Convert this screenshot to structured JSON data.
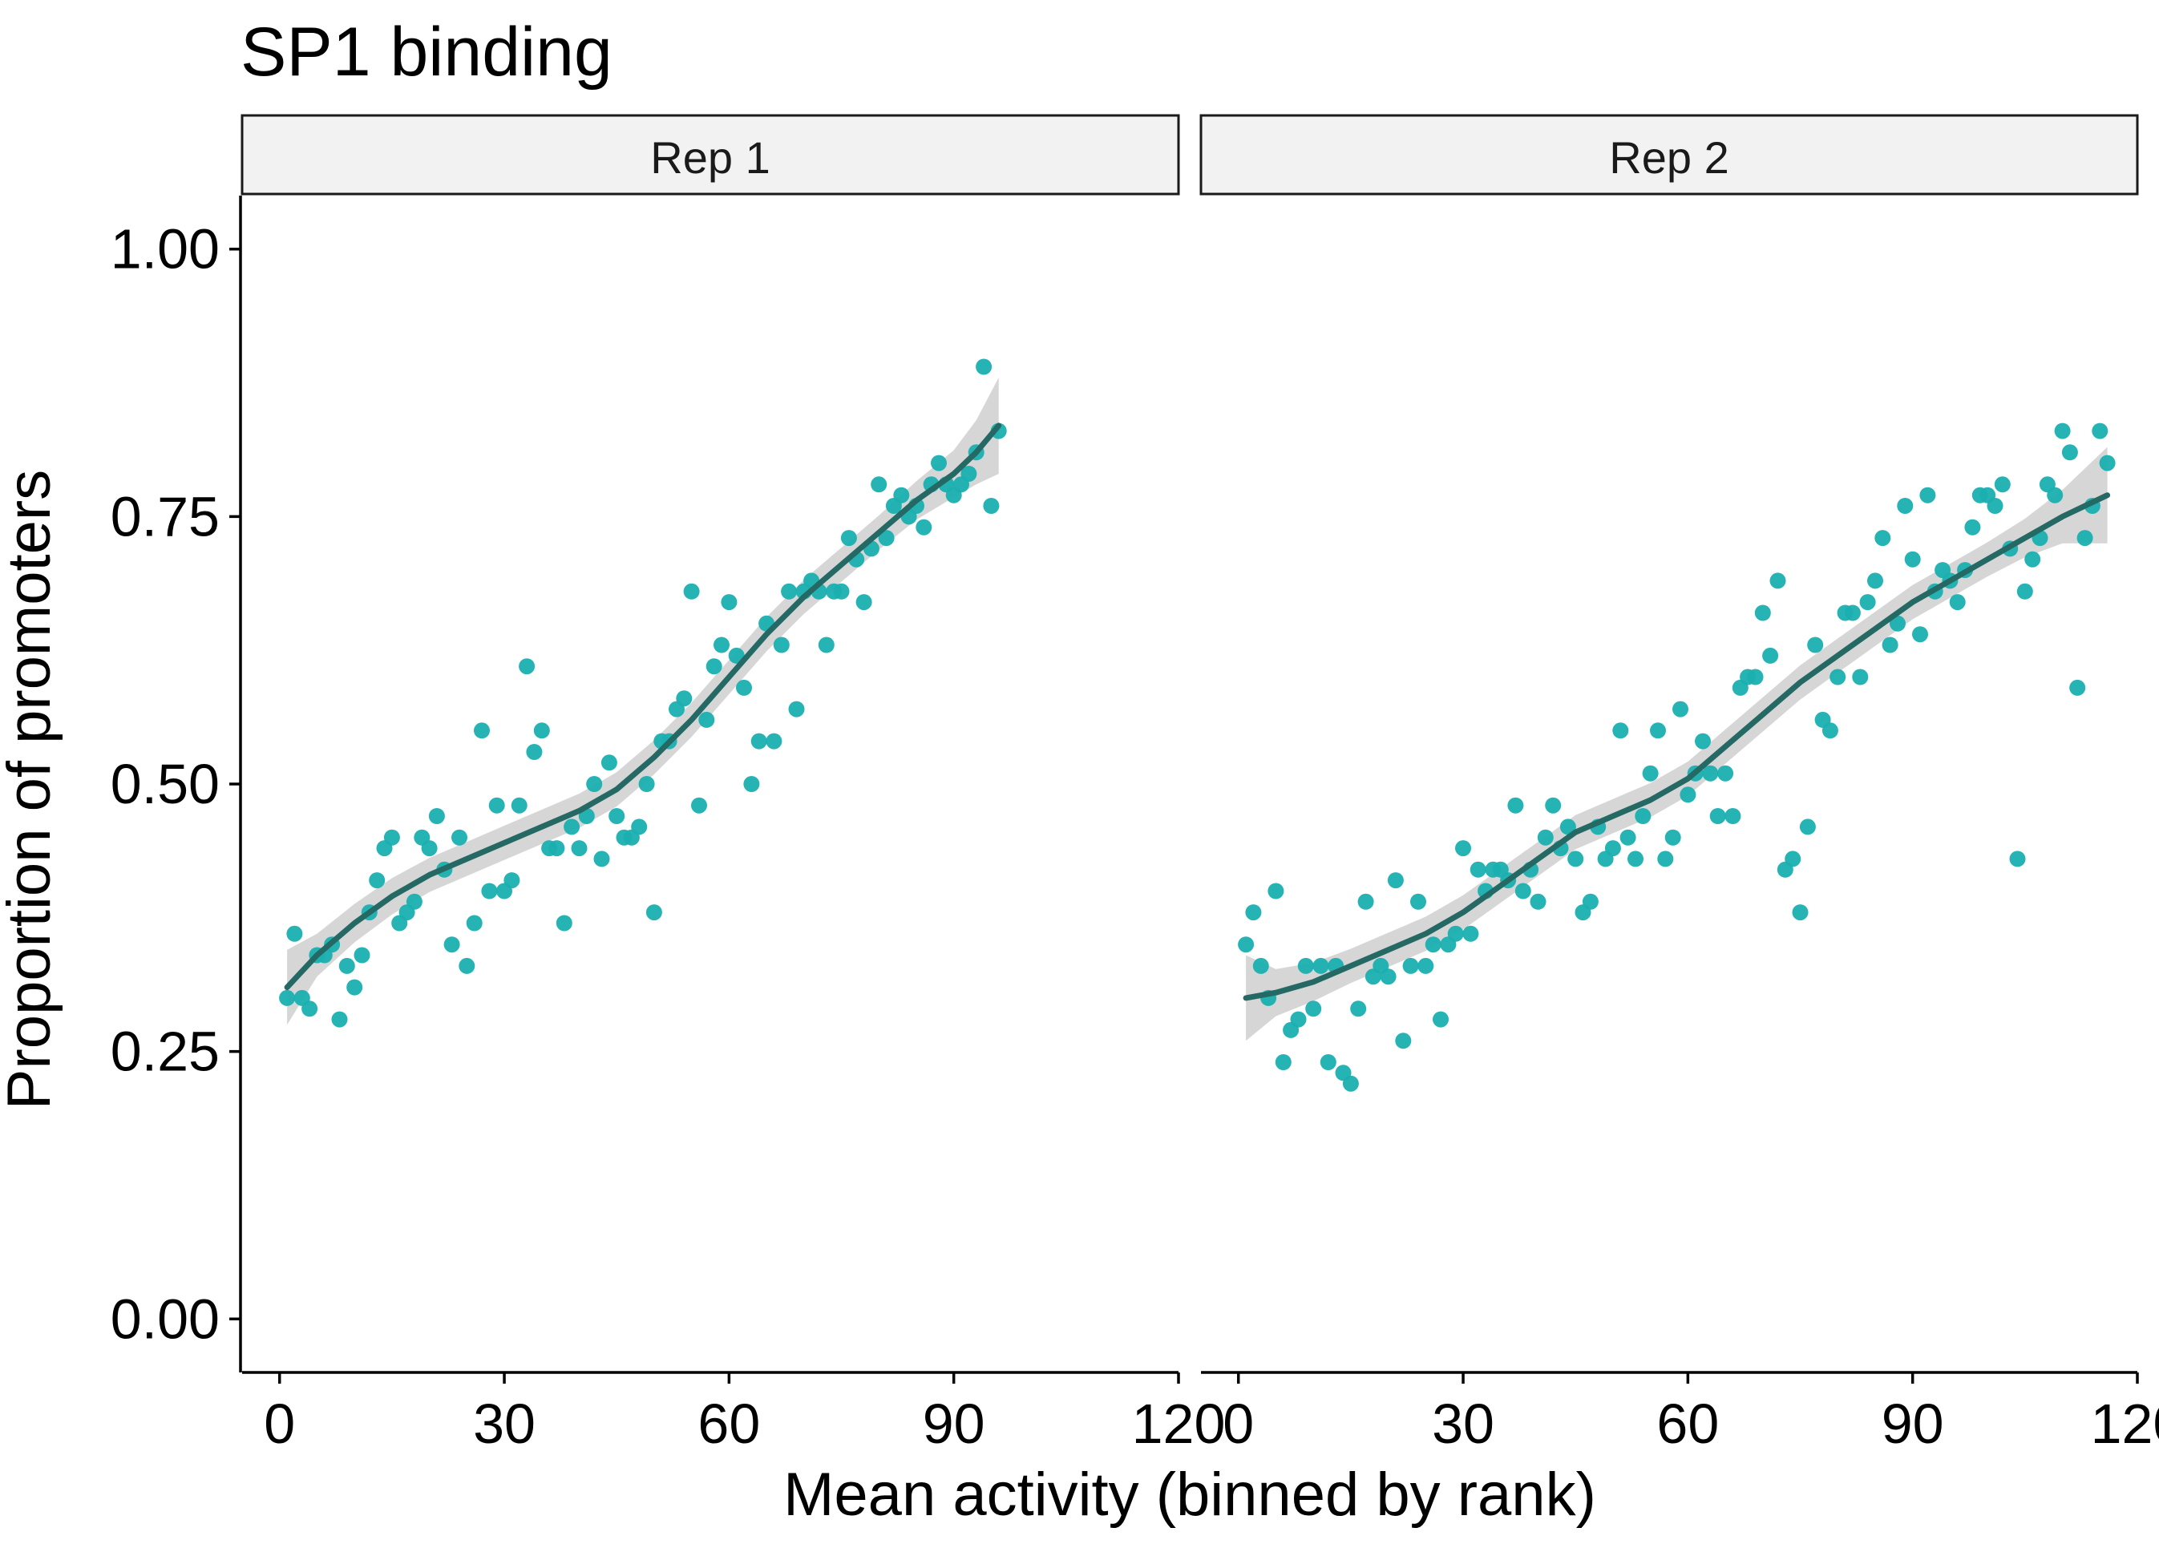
{
  "chart_data": {
    "type": "scatter",
    "title": "SP1 binding",
    "xlabel": "Mean activity (binned by rank)",
    "ylabel": "Proportion of promoters",
    "xlim": [
      -5,
      120
    ],
    "ylim": [
      -0.05,
      1.05
    ],
    "x_ticks": [
      0,
      30,
      60,
      90,
      120
    ],
    "y_ticks": [
      0,
      0.25,
      0.5,
      0.75,
      1
    ],
    "x_tick_labels": [
      "0",
      "30",
      "60",
      "90",
      "120"
    ],
    "y_tick_labels": [
      "0.00",
      "0.25",
      "0.50",
      "0.75",
      "1.00"
    ],
    "grid": false,
    "legend": "none",
    "colors": {
      "point": "#1aafb0",
      "smooth_line": "#256965",
      "ribbon": "#d2d2d2",
      "strip_fill": "#f2f2f2"
    },
    "panels": [
      {
        "strip": "Rep 1",
        "points": [
          [
            1,
            0.3
          ],
          [
            2,
            0.36
          ],
          [
            3,
            0.3
          ],
          [
            4,
            0.29
          ],
          [
            5,
            0.34
          ],
          [
            6,
            0.34
          ],
          [
            7,
            0.35
          ],
          [
            8,
            0.28
          ],
          [
            9,
            0.33
          ],
          [
            10,
            0.31
          ],
          [
            11,
            0.34
          ],
          [
            12,
            0.38
          ],
          [
            13,
            0.41
          ],
          [
            14,
            0.44
          ],
          [
            15,
            0.45
          ],
          [
            16,
            0.37
          ],
          [
            17,
            0.38
          ],
          [
            18,
            0.39
          ],
          [
            19,
            0.45
          ],
          [
            20,
            0.44
          ],
          [
            21,
            0.47
          ],
          [
            22,
            0.42
          ],
          [
            23,
            0.35
          ],
          [
            24,
            0.45
          ],
          [
            25,
            0.33
          ],
          [
            26,
            0.37
          ],
          [
            27,
            0.55
          ],
          [
            28,
            0.4
          ],
          [
            29,
            0.48
          ],
          [
            30,
            0.4
          ],
          [
            31,
            0.41
          ],
          [
            32,
            0.48
          ],
          [
            33,
            0.61
          ],
          [
            34,
            0.53
          ],
          [
            35,
            0.55
          ],
          [
            36,
            0.44
          ],
          [
            37,
            0.44
          ],
          [
            38,
            0.37
          ],
          [
            39,
            0.46
          ],
          [
            40,
            0.44
          ],
          [
            41,
            0.47
          ],
          [
            42,
            0.5
          ],
          [
            43,
            0.43
          ],
          [
            44,
            0.52
          ],
          [
            45,
            0.47
          ],
          [
            46,
            0.45
          ],
          [
            47,
            0.45
          ],
          [
            48,
            0.46
          ],
          [
            49,
            0.5
          ],
          [
            50,
            0.38
          ],
          [
            51,
            0.54
          ],
          [
            52,
            0.54
          ],
          [
            53,
            0.57
          ],
          [
            54,
            0.58
          ],
          [
            55,
            0.68
          ],
          [
            56,
            0.48
          ],
          [
            57,
            0.56
          ],
          [
            58,
            0.61
          ],
          [
            59,
            0.63
          ],
          [
            60,
            0.67
          ],
          [
            61,
            0.62
          ],
          [
            62,
            0.59
          ],
          [
            63,
            0.5
          ],
          [
            64,
            0.54
          ],
          [
            65,
            0.65
          ],
          [
            66,
            0.54
          ],
          [
            67,
            0.63
          ],
          [
            68,
            0.68
          ],
          [
            69,
            0.57
          ],
          [
            70,
            0.68
          ],
          [
            71,
            0.69
          ],
          [
            72,
            0.68
          ],
          [
            73,
            0.63
          ],
          [
            74,
            0.68
          ],
          [
            75,
            0.68
          ],
          [
            76,
            0.73
          ],
          [
            77,
            0.71
          ],
          [
            78,
            0.67
          ],
          [
            79,
            0.72
          ],
          [
            80,
            0.78
          ],
          [
            81,
            0.73
          ],
          [
            82,
            0.76
          ],
          [
            83,
            0.77
          ],
          [
            84,
            0.75
          ],
          [
            85,
            0.76
          ],
          [
            86,
            0.74
          ],
          [
            87,
            0.78
          ],
          [
            88,
            0.8
          ],
          [
            89,
            0.78
          ],
          [
            90,
            0.77
          ],
          [
            91,
            0.78
          ],
          [
            92,
            0.79
          ],
          [
            93,
            0.81
          ],
          [
            94,
            0.89
          ],
          [
            95,
            0.76
          ],
          [
            96,
            0.83
          ]
        ],
        "smooth": [
          [
            1,
            0.31
          ],
          [
            5,
            0.34
          ],
          [
            10,
            0.37
          ],
          [
            15,
            0.395
          ],
          [
            20,
            0.415
          ],
          [
            25,
            0.43
          ],
          [
            30,
            0.445
          ],
          [
            35,
            0.46
          ],
          [
            40,
            0.475
          ],
          [
            45,
            0.495
          ],
          [
            50,
            0.525
          ],
          [
            55,
            0.56
          ],
          [
            60,
            0.6
          ],
          [
            65,
            0.64
          ],
          [
            70,
            0.675
          ],
          [
            75,
            0.705
          ],
          [
            80,
            0.735
          ],
          [
            85,
            0.765
          ],
          [
            90,
            0.79
          ],
          [
            93,
            0.81
          ],
          [
            96,
            0.835
          ]
        ],
        "band_halfwidth": [
          0.035,
          0.02,
          0.018,
          0.017,
          0.016,
          0.016,
          0.016,
          0.016,
          0.016,
          0.016,
          0.016,
          0.016,
          0.016,
          0.016,
          0.016,
          0.016,
          0.016,
          0.018,
          0.022,
          0.03,
          0.045
        ]
      },
      {
        "strip": "Rep 2",
        "points": [
          [
            1,
            0.35
          ],
          [
            2,
            0.38
          ],
          [
            3,
            0.33
          ],
          [
            4,
            0.3
          ],
          [
            5,
            0.4
          ],
          [
            6,
            0.24
          ],
          [
            7,
            0.27
          ],
          [
            8,
            0.28
          ],
          [
            9,
            0.33
          ],
          [
            10,
            0.29
          ],
          [
            11,
            0.33
          ],
          [
            12,
            0.24
          ],
          [
            13,
            0.33
          ],
          [
            14,
            0.23
          ],
          [
            15,
            0.22
          ],
          [
            16,
            0.29
          ],
          [
            17,
            0.39
          ],
          [
            18,
            0.32
          ],
          [
            19,
            0.33
          ],
          [
            20,
            0.32
          ],
          [
            21,
            0.41
          ],
          [
            22,
            0.26
          ],
          [
            23,
            0.33
          ],
          [
            24,
            0.39
          ],
          [
            25,
            0.33
          ],
          [
            26,
            0.35
          ],
          [
            27,
            0.28
          ],
          [
            28,
            0.35
          ],
          [
            29,
            0.36
          ],
          [
            30,
            0.44
          ],
          [
            31,
            0.36
          ],
          [
            32,
            0.42
          ],
          [
            33,
            0.4
          ],
          [
            34,
            0.42
          ],
          [
            35,
            0.42
          ],
          [
            36,
            0.41
          ],
          [
            37,
            0.48
          ],
          [
            38,
            0.4
          ],
          [
            39,
            0.42
          ],
          [
            40,
            0.39
          ],
          [
            41,
            0.45
          ],
          [
            42,
            0.48
          ],
          [
            43,
            0.44
          ],
          [
            44,
            0.46
          ],
          [
            45,
            0.43
          ],
          [
            46,
            0.38
          ],
          [
            47,
            0.39
          ],
          [
            48,
            0.46
          ],
          [
            49,
            0.43
          ],
          [
            50,
            0.44
          ],
          [
            51,
            0.55
          ],
          [
            52,
            0.45
          ],
          [
            53,
            0.43
          ],
          [
            54,
            0.47
          ],
          [
            55,
            0.51
          ],
          [
            56,
            0.55
          ],
          [
            57,
            0.43
          ],
          [
            58,
            0.45
          ],
          [
            59,
            0.57
          ],
          [
            60,
            0.49
          ],
          [
            61,
            0.51
          ],
          [
            62,
            0.54
          ],
          [
            63,
            0.51
          ],
          [
            64,
            0.47
          ],
          [
            65,
            0.51
          ],
          [
            66,
            0.47
          ],
          [
            67,
            0.59
          ],
          [
            68,
            0.6
          ],
          [
            69,
            0.6
          ],
          [
            70,
            0.66
          ],
          [
            71,
            0.62
          ],
          [
            72,
            0.69
          ],
          [
            73,
            0.42
          ],
          [
            74,
            0.43
          ],
          [
            75,
            0.38
          ],
          [
            76,
            0.46
          ],
          [
            77,
            0.63
          ],
          [
            78,
            0.56
          ],
          [
            79,
            0.55
          ],
          [
            80,
            0.6
          ],
          [
            81,
            0.66
          ],
          [
            82,
            0.66
          ],
          [
            83,
            0.6
          ],
          [
            84,
            0.67
          ],
          [
            85,
            0.69
          ],
          [
            86,
            0.73
          ],
          [
            87,
            0.63
          ],
          [
            88,
            0.65
          ],
          [
            89,
            0.76
          ],
          [
            90,
            0.71
          ],
          [
            91,
            0.64
          ],
          [
            92,
            0.77
          ],
          [
            93,
            0.68
          ],
          [
            94,
            0.7
          ],
          [
            95,
            0.69
          ],
          [
            96,
            0.67
          ],
          [
            97,
            0.7
          ],
          [
            98,
            0.74
          ],
          [
            99,
            0.77
          ],
          [
            100,
            0.77
          ],
          [
            101,
            0.76
          ],
          [
            102,
            0.78
          ],
          [
            103,
            0.72
          ],
          [
            104,
            0.43
          ],
          [
            105,
            0.68
          ],
          [
            106,
            0.71
          ],
          [
            107,
            0.73
          ],
          [
            108,
            0.78
          ],
          [
            109,
            0.77
          ],
          [
            110,
            0.83
          ],
          [
            111,
            0.81
          ],
          [
            112,
            0.59
          ],
          [
            113,
            0.73
          ],
          [
            114,
            0.76
          ],
          [
            115,
            0.83
          ],
          [
            116,
            0.8
          ]
        ],
        "smooth": [
          [
            1,
            0.3
          ],
          [
            5,
            0.305
          ],
          [
            10,
            0.315
          ],
          [
            15,
            0.33
          ],
          [
            20,
            0.345
          ],
          [
            25,
            0.36
          ],
          [
            30,
            0.38
          ],
          [
            35,
            0.405
          ],
          [
            40,
            0.43
          ],
          [
            45,
            0.455
          ],
          [
            50,
            0.47
          ],
          [
            55,
            0.485
          ],
          [
            60,
            0.505
          ],
          [
            65,
            0.535
          ],
          [
            70,
            0.565
          ],
          [
            75,
            0.595
          ],
          [
            80,
            0.62
          ],
          [
            85,
            0.645
          ],
          [
            90,
            0.67
          ],
          [
            95,
            0.69
          ],
          [
            100,
            0.71
          ],
          [
            105,
            0.73
          ],
          [
            110,
            0.75
          ],
          [
            116,
            0.77
          ]
        ],
        "band_halfwidth": [
          0.04,
          0.022,
          0.018,
          0.016,
          0.016,
          0.016,
          0.016,
          0.016,
          0.016,
          0.016,
          0.016,
          0.016,
          0.016,
          0.016,
          0.016,
          0.016,
          0.016,
          0.016,
          0.016,
          0.016,
          0.016,
          0.018,
          0.025,
          0.045
        ]
      }
    ]
  }
}
